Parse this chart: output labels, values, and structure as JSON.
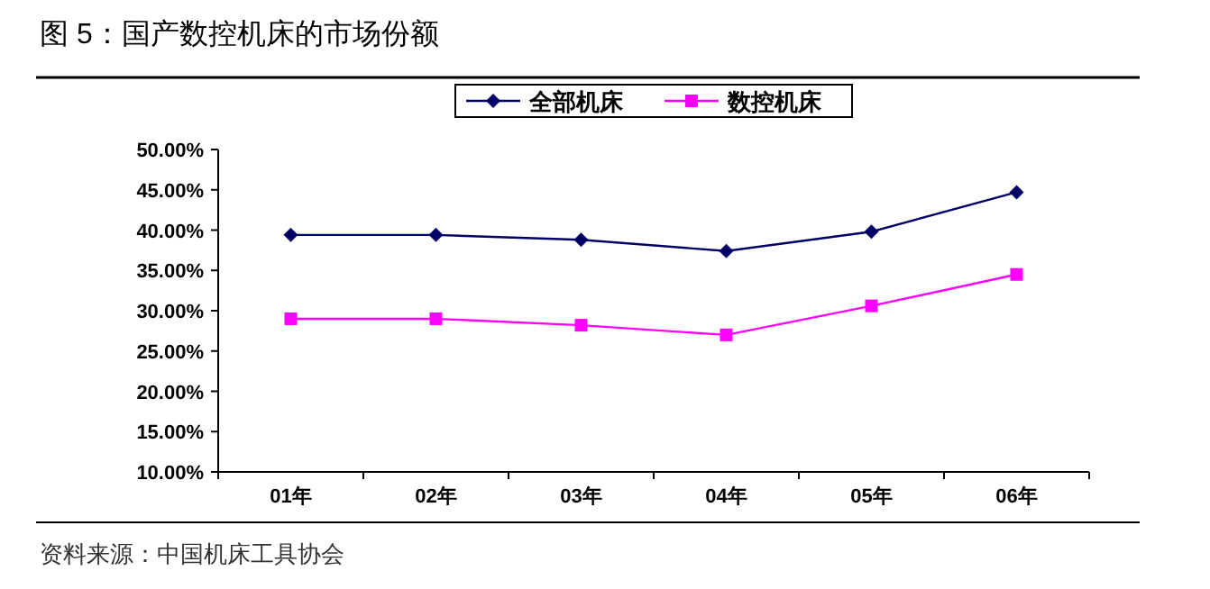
{
  "chart_data": {
    "type": "line",
    "title": "图 5：国产数控机床的市场份额",
    "categories": [
      "01年",
      "02年",
      "03年",
      "04年",
      "05年",
      "06年"
    ],
    "series": [
      {
        "name": "全部机床",
        "color": "#000066",
        "marker": "diamond",
        "values": [
          39.4,
          39.4,
          38.8,
          37.4,
          39.8,
          44.7
        ]
      },
      {
        "name": "数控机床",
        "color": "#ff00ff",
        "marker": "square",
        "values": [
          29.0,
          29.0,
          28.2,
          27.0,
          30.6,
          34.5
        ]
      }
    ],
    "ylim": [
      10,
      50
    ],
    "yticks": [
      {
        "value": 10,
        "label": "10.00%"
      },
      {
        "value": 15,
        "label": "15.00%"
      },
      {
        "value": 20,
        "label": "20.00%"
      },
      {
        "value": 25,
        "label": "25.00%"
      },
      {
        "value": 30,
        "label": "30.00%"
      },
      {
        "value": 35,
        "label": "35.00%"
      },
      {
        "value": 40,
        "label": "40.00%"
      },
      {
        "value": 45,
        "label": "45.00%"
      },
      {
        "value": 50,
        "label": "50.00%"
      }
    ],
    "grid": false,
    "legend": "top",
    "line_style": "solid",
    "annotations": [
      "资料来源：中国机床工具协会"
    ]
  }
}
